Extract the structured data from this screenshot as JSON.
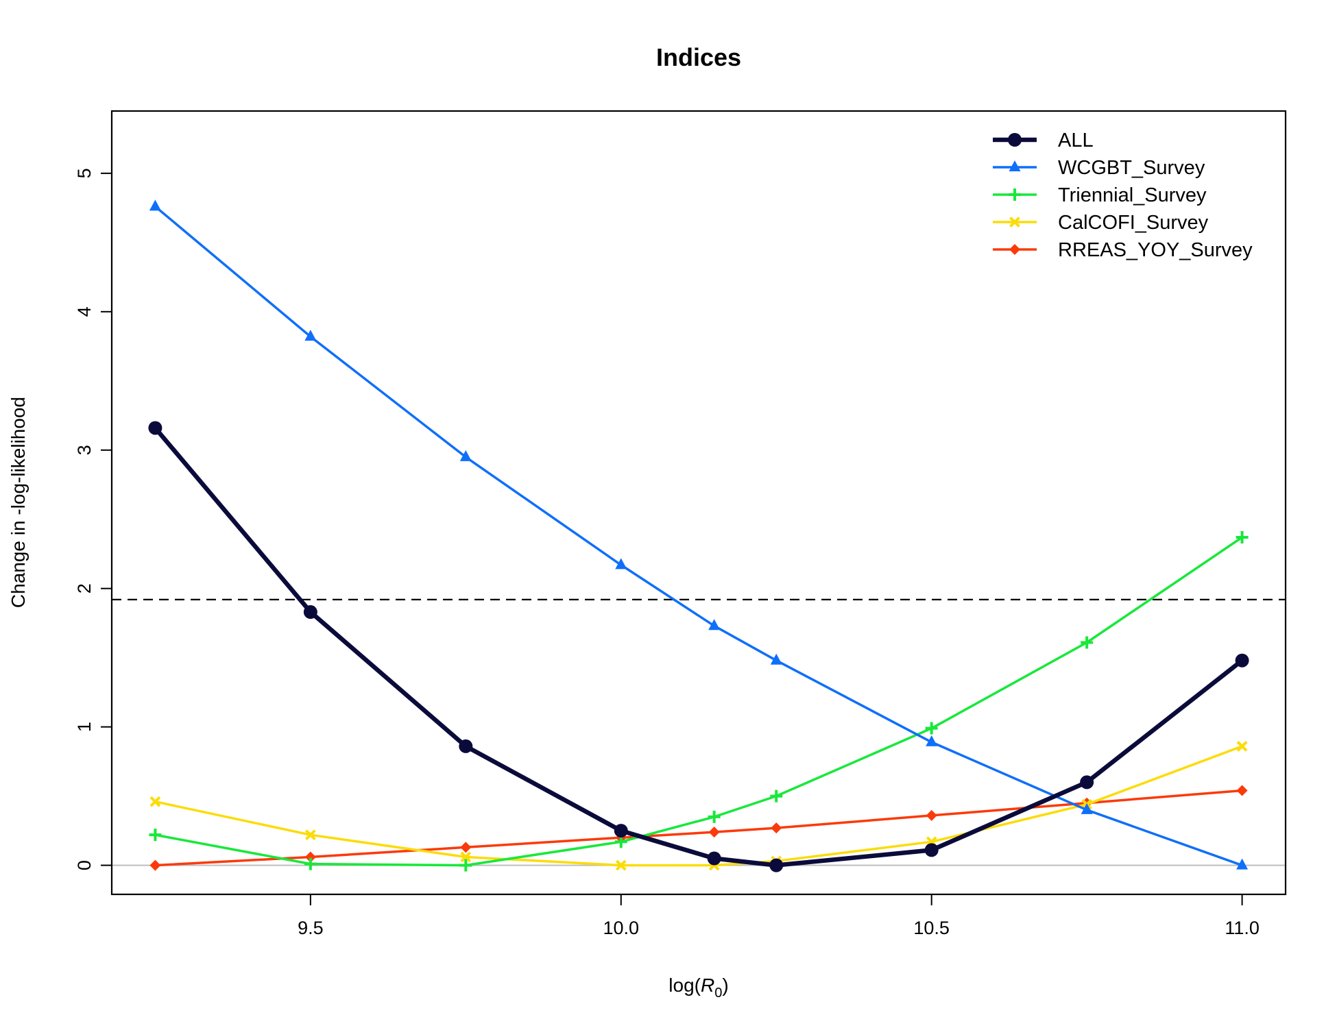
{
  "chart_data": {
    "type": "line",
    "title": "Indices",
    "xlabel_prefix": "log(",
    "xlabel_var": "R",
    "xlabel_sub": "0",
    "xlabel_suffix": ")",
    "ylabel": "Change in -log-likelihood",
    "xlim": [
      9.18,
      11.07
    ],
    "ylim": [
      -0.21,
      5.45
    ],
    "x_ticks": [
      9.5,
      10.0,
      10.5,
      11.0
    ],
    "x_tick_labels": [
      "9.5",
      "10.0",
      "10.5",
      "11.0"
    ],
    "y_ticks": [
      0,
      1,
      2,
      3,
      4,
      5
    ],
    "y_tick_labels": [
      "0",
      "1",
      "2",
      "3",
      "4",
      "5"
    ],
    "reference_lines": [
      {
        "name": "threshold",
        "y": 1.92,
        "style": "dashed",
        "color": "#000000"
      },
      {
        "name": "zero",
        "y": 0,
        "style": "solid",
        "color": "#bebebe"
      }
    ],
    "legend_position": "top-right",
    "series": [
      {
        "name": "ALL",
        "color": "#0b0b3b",
        "marker": "circle",
        "bold": true,
        "x": [
          9.25,
          9.5,
          9.75,
          10.0,
          10.15,
          10.25,
          10.5,
          10.75,
          11.0
        ],
        "y": [
          3.16,
          1.83,
          0.86,
          0.25,
          0.05,
          0.0,
          0.11,
          0.6,
          1.48
        ]
      },
      {
        "name": "WCGBT_Survey",
        "color": "#0f6ffa",
        "marker": "triangle",
        "bold": false,
        "x": [
          9.25,
          9.5,
          9.75,
          10.0,
          10.15,
          10.25,
          10.5,
          10.75,
          11.0
        ],
        "y": [
          4.76,
          3.82,
          2.95,
          2.17,
          1.73,
          1.48,
          0.89,
          0.4,
          0.0
        ]
      },
      {
        "name": "Triennial_Survey",
        "color": "#18e83a",
        "marker": "plus",
        "bold": false,
        "x": [
          9.25,
          9.5,
          9.75,
          10.0,
          10.15,
          10.25,
          10.5,
          10.75,
          11.0
        ],
        "y": [
          0.22,
          0.01,
          0.0,
          0.17,
          0.35,
          0.5,
          0.99,
          1.61,
          2.37
        ]
      },
      {
        "name": "CalCOFI_Survey",
        "color": "#fbdc0a",
        "marker": "cross",
        "bold": false,
        "x": [
          9.25,
          9.5,
          9.75,
          10.0,
          10.15,
          10.25,
          10.5,
          10.75,
          11.0
        ],
        "y": [
          0.46,
          0.22,
          0.06,
          0.0,
          0.0,
          0.03,
          0.17,
          0.44,
          0.86
        ]
      },
      {
        "name": "RREAS_YOY_Survey",
        "color": "#fb3a0b",
        "marker": "diamond",
        "bold": false,
        "x": [
          9.25,
          9.5,
          9.75,
          10.0,
          10.15,
          10.25,
          10.5,
          10.75,
          11.0
        ],
        "y": [
          0.0,
          0.06,
          0.13,
          0.2,
          0.24,
          0.27,
          0.36,
          0.45,
          0.54
        ]
      }
    ]
  }
}
